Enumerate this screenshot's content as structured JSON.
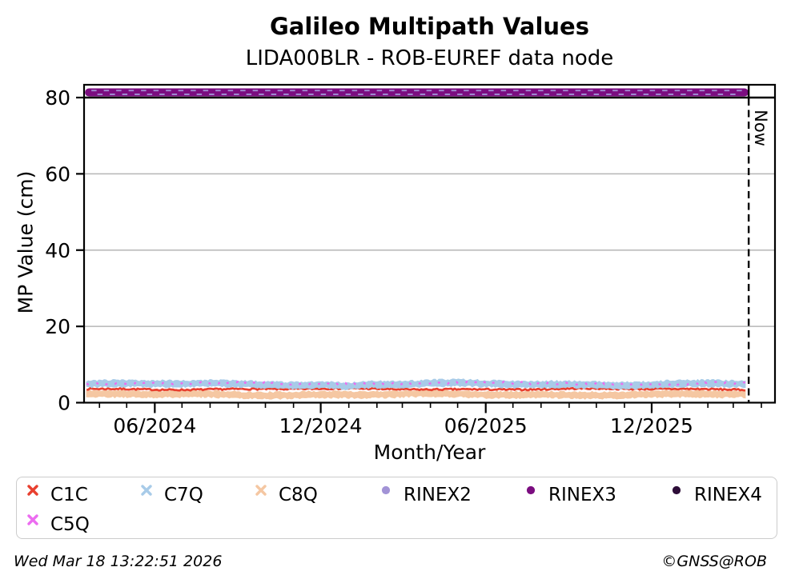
{
  "chart_data": {
    "type": "scatter",
    "title": "Galileo Multipath Values",
    "subtitle": "LIDA00BLR - ROB-EUREF data node",
    "xlabel": "Month/Year",
    "ylabel": "MP Value (cm)",
    "ylim": [
      0,
      83.4
    ],
    "yticks": [
      0,
      20,
      40,
      60,
      80
    ],
    "xticks": [
      {
        "label": "06/2024",
        "date": "2024-06-01"
      },
      {
        "label": "12/2024",
        "date": "2024-12-01"
      },
      {
        "label": "06/2025",
        "date": "2025-06-01"
      },
      {
        "label": "12/2025",
        "date": "2025-12-01"
      }
    ],
    "x_range": [
      "2024-03-15",
      "2026-04-16"
    ],
    "x_data_range": [
      "2024-03-16",
      "2026-03-16"
    ],
    "grid": "horizontal-light-gray",
    "divider_value": 80,
    "now": {
      "label": "Now",
      "date": "2026-03-18"
    },
    "legend_position": "below",
    "series": [
      {
        "name": "C1C",
        "color": "#e8402f",
        "marker": "x",
        "style": "line",
        "approx_mean_cm": 3.55,
        "spread_cm": 0.0,
        "jitter_cm": 0.42,
        "wobble_cm": 0.12
      },
      {
        "name": "C7Q",
        "color": "#a8cbe8",
        "marker": "x",
        "style": "band",
        "approx_mean_cm": 4.85,
        "spread_cm": 0.72,
        "jitter_cm": 0.5,
        "wobble_cm": 0.22
      },
      {
        "name": "C8Q",
        "color": "#f5c7a2",
        "marker": "x",
        "style": "band",
        "approx_mean_cm": 2.15,
        "spread_cm": 0.72,
        "jitter_cm": 0.5,
        "wobble_cm": 0.18
      },
      {
        "name": "RINEX2",
        "color": "#a293d6",
        "marker": "dot",
        "style": "ribbon-dashes",
        "value_cm": 81.35
      },
      {
        "name": "RINEX3",
        "color": "#7b0d80",
        "marker": "dot",
        "style": "ribbon",
        "value_cm": 81.35
      },
      {
        "name": "RINEX4",
        "color": "#2d0d38",
        "marker": "dot",
        "style": "none",
        "value_cm": null
      },
      {
        "name": "C5Q",
        "color": "#ec6cf0",
        "marker": "x",
        "style": "specks",
        "approx_mean_cm": 5.05,
        "spread_cm": 0.0,
        "jitter_cm": 0.6,
        "wobble_cm": 0.18
      }
    ]
  },
  "legend": {
    "order": [
      0,
      1,
      2,
      3,
      4,
      5,
      6
    ]
  },
  "footer": {
    "timestamp": "Wed Mar 18 13:22:51 2026",
    "credit": "©GNSS@ROB"
  }
}
